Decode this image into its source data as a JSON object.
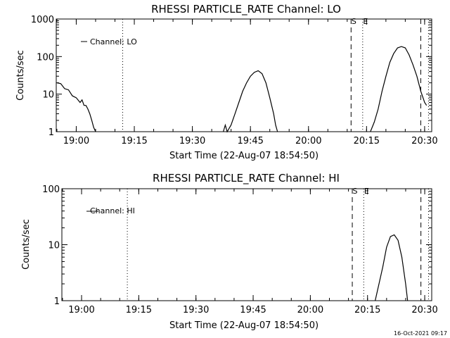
{
  "chart_data": [
    {
      "type": "line",
      "title": "RHESSI PARTICLE_RATE Channel: LO",
      "xlabel": "Start Time (22-Aug-07 18:54:50)",
      "ylabel": "Counts/sec",
      "yscale": "log",
      "ylim": [
        1,
        1000
      ],
      "xlim_minutes_after_start": [
        0,
        97
      ],
      "xticks": [
        "19:00",
        "19:15",
        "19:30",
        "19:45",
        "20:00",
        "20:15",
        "20:30"
      ],
      "yticks": [
        "1",
        "10",
        "100",
        "1000"
      ],
      "legend": {
        "label": "Channel: LO",
        "position": "top-left"
      },
      "markers": [
        {
          "time": "19:12",
          "style": "dotted",
          "label": ""
        },
        {
          "time": "20:11",
          "style": "dashed",
          "label": "S"
        },
        {
          "time": "20:14",
          "style": "dotted",
          "label": "E"
        },
        {
          "time": "20:29",
          "style": "dashed",
          "label": ""
        },
        {
          "time": "20:31",
          "style": "dotted",
          "label": ""
        }
      ],
      "series": [
        {
          "name": "Channel: LO",
          "segments": [
            [
              [
                "18:55",
                20
              ],
              [
                "18:56",
                19
              ],
              [
                "18:57",
                14
              ],
              [
                "18:58",
                13
              ],
              [
                "18:59",
                9
              ],
              [
                "19:00",
                8
              ],
              [
                "19:01",
                6
              ],
              [
                "19:01:30",
                7
              ],
              [
                "19:02",
                5
              ],
              [
                "19:02:30",
                5
              ],
              [
                "19:03",
                4
              ],
              [
                "19:03:30",
                3
              ],
              [
                "19:04",
                2
              ],
              [
                "19:04:30",
                1.3
              ],
              [
                "19:05",
                1
              ]
            ],
            [
              [
                "19:38",
                1
              ],
              [
                "19:38:30",
                1.5
              ],
              [
                "19:39",
                1
              ],
              [
                "19:40",
                1.5
              ],
              [
                "19:41",
                3
              ],
              [
                "19:42",
                6
              ],
              [
                "19:43",
                12
              ],
              [
                "19:44",
                20
              ],
              [
                "19:45",
                30
              ],
              [
                "19:46",
                38
              ],
              [
                "19:47",
                42
              ],
              [
                "19:48",
                35
              ],
              [
                "19:49",
                20
              ],
              [
                "19:50",
                8
              ],
              [
                "19:51",
                3
              ],
              [
                "19:51:30",
                1.5
              ],
              [
                "19:52",
                1
              ]
            ],
            [
              [
                "20:16",
                1
              ],
              [
                "20:17",
                1.8
              ],
              [
                "20:18",
                4
              ],
              [
                "20:19",
                12
              ],
              [
                "20:20",
                30
              ],
              [
                "20:21",
                70
              ],
              [
                "20:22",
                120
              ],
              [
                "20:23",
                170
              ],
              [
                "20:24",
                185
              ],
              [
                "20:25",
                170
              ],
              [
                "20:26",
                110
              ],
              [
                "20:27",
                60
              ],
              [
                "20:28",
                30
              ],
              [
                "20:29",
                12
              ],
              [
                "20:30",
                6
              ],
              [
                "20:30:30",
                5
              ]
            ]
          ]
        }
      ]
    },
    {
      "type": "line",
      "title": "RHESSI PARTICLE_RATE Channel: HI",
      "xlabel": "Start Time (22-Aug-07 18:54:50)",
      "ylabel": "Counts/sec",
      "yscale": "log",
      "ylim": [
        1,
        100
      ],
      "xlim_minutes_after_start": [
        0,
        97
      ],
      "xticks": [
        "19:00",
        "19:15",
        "19:30",
        "19:45",
        "20:00",
        "20:15",
        "20:30"
      ],
      "yticks": [
        "1",
        "10",
        "100"
      ],
      "legend": {
        "label": "Channel: HI",
        "position": "top-left"
      },
      "markers": [
        {
          "time": "19:12",
          "style": "dotted",
          "label": ""
        },
        {
          "time": "20:11",
          "style": "dashed",
          "label": "S"
        },
        {
          "time": "20:14",
          "style": "dotted",
          "label": "E"
        },
        {
          "time": "20:29",
          "style": "dashed",
          "label": ""
        },
        {
          "time": "20:31",
          "style": "dotted",
          "label": ""
        }
      ],
      "series": [
        {
          "name": "Channel: HI",
          "segments": [
            [
              [
                "20:17",
                1
              ],
              [
                "20:18",
                2
              ],
              [
                "20:19",
                4
              ],
              [
                "20:20",
                9
              ],
              [
                "20:21",
                14
              ],
              [
                "20:22",
                15
              ],
              [
                "20:23",
                12
              ],
              [
                "20:24",
                6
              ],
              [
                "20:25",
                2
              ],
              [
                "20:25:30",
                1
              ]
            ]
          ]
        }
      ]
    }
  ],
  "footer": {
    "timestamp": "16-Oct-2021 09:17"
  }
}
